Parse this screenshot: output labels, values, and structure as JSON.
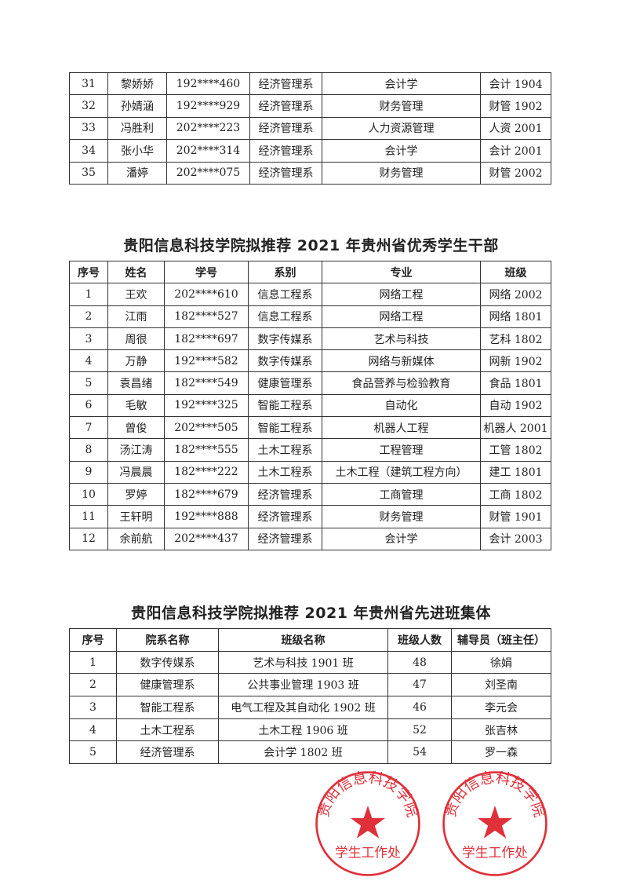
{
  "table_continued": {
    "rows": [
      [
        "31",
        "黎娇娇",
        "192****460",
        "经济管理系",
        "会计学",
        "会计 1904"
      ],
      [
        "32",
        "孙婧涵",
        "192****929",
        "经济管理系",
        "财务管理",
        "财管 1902"
      ],
      [
        "33",
        "冯胜利",
        "202****223",
        "经济管理系",
        "人力资源管理",
        "人资 2001"
      ],
      [
        "34",
        "张小华",
        "202****314",
        "经济管理系",
        "会计学",
        "会计 2001"
      ],
      [
        "35",
        "潘婷",
        "202****075",
        "经济管理系",
        "财务管理",
        "财管 2002"
      ]
    ]
  },
  "cadre_section": {
    "title": "贵阳信息科技学院拟推荐 2021 年贵州省优秀学生干部",
    "headers": [
      "序号",
      "姓名",
      "学号",
      "系别",
      "专业",
      "班级"
    ],
    "rows": [
      [
        "1",
        "王欢",
        "202****610",
        "信息工程系",
        "网络工程",
        "网络 2002"
      ],
      [
        "2",
        "江雨",
        "182****527",
        "信息工程系",
        "网络工程",
        "网络 1801"
      ],
      [
        "3",
        "周很",
        "182****697",
        "数字传媒系",
        "艺术与科技",
        "艺科 1802"
      ],
      [
        "4",
        "万静",
        "192****582",
        "数字传媒系",
        "网络与新媒体",
        "网新 1902"
      ],
      [
        "5",
        "袁昌绪",
        "182****549",
        "健康管理系",
        "食品营养与检验教育",
        "食品 1801"
      ],
      [
        "6",
        "毛敏",
        "192****325",
        "智能工程系",
        "自动化",
        "自动 1902"
      ],
      [
        "7",
        "曾俊",
        "202****505",
        "智能工程系",
        "机器人工程",
        "机器人 2001"
      ],
      [
        "8",
        "汤江涛",
        "182****555",
        "土木工程系",
        "工程管理",
        "工管 1802"
      ],
      [
        "9",
        "冯晨晨",
        "182****222",
        "土木工程系",
        "土木工程（建筑工程方向）",
        "建工 1801"
      ],
      [
        "10",
        "罗婷",
        "182****679",
        "经济管理系",
        "工商管理",
        "工商 1802"
      ],
      [
        "11",
        "王轩明",
        "192****888",
        "经济管理系",
        "财务管理",
        "财管 1901"
      ],
      [
        "12",
        "余前航",
        "202****437",
        "经济管理系",
        "会计学",
        "会计 2003"
      ]
    ]
  },
  "class_section": {
    "title": "贵阳信息科技学院拟推荐 2021 年贵州省先进班集体",
    "headers": [
      "序号",
      "院系名称",
      "班级名称",
      "班级人数",
      "辅导员（班主任）"
    ],
    "rows": [
      [
        "1",
        "数字传媒系",
        "艺术与科技 1901 班",
        "48",
        "徐娟"
      ],
      [
        "2",
        "健康管理系",
        "公共事业管理 1903 班",
        "47",
        "刘圣南"
      ],
      [
        "3",
        "智能工程系",
        "电气工程及其自动化 1902 班",
        "46",
        "李元会"
      ],
      [
        "4",
        "土木工程系",
        "土木工程 1906 班",
        "52",
        "张吉林"
      ],
      [
        "5",
        "经济管理系",
        "会计学 1802 班",
        "54",
        "罗一森"
      ]
    ]
  },
  "stamp": {
    "outer_text": "贵阳信息科技学院",
    "inner_text": "学生工作处",
    "color": "#e0303a"
  }
}
